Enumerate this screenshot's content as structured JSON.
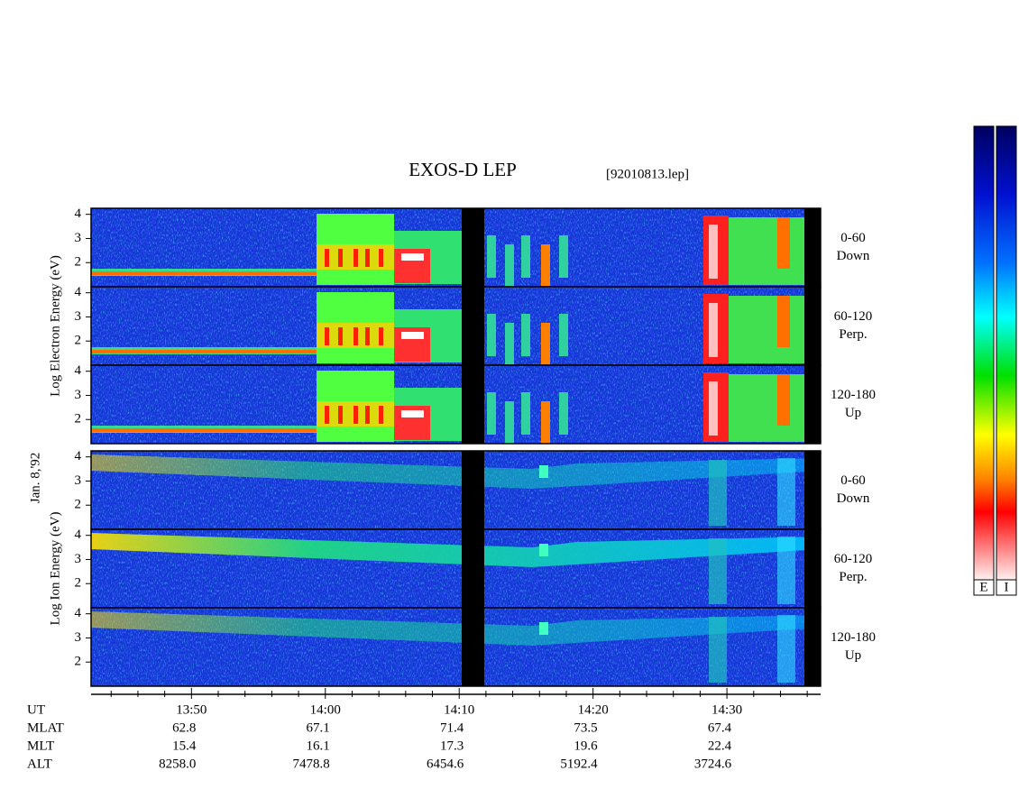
{
  "chart_data": {
    "type": "spectrogram",
    "title": "EXOS-D LEP",
    "subtitle": "[92010813.lep]",
    "date_label": "Jan. 8,'92",
    "groups": [
      {
        "ylabel": "Log  Electron  Energy (eV)"
      },
      {
        "ylabel": "Log  Ion  Energy (eV)"
      }
    ],
    "panels": [
      {
        "angle": "0-60",
        "direction": "Down"
      },
      {
        "angle": "60-120",
        "direction": "Perp."
      },
      {
        "angle": "120-180",
        "direction": "Up"
      },
      {
        "angle": "0-60",
        "direction": "Down"
      },
      {
        "angle": "60-120",
        "direction": "Perp."
      },
      {
        "angle": "120-180",
        "direction": "Up"
      }
    ],
    "ylim": [
      1,
      4.25
    ],
    "yticks": [
      2,
      3,
      4
    ],
    "xlim": [
      822.5,
      877
    ],
    "xticks": [
      {
        "value": 830,
        "label": "13:50"
      },
      {
        "value": 840,
        "label": "14:00"
      },
      {
        "value": 850,
        "label": "14:10"
      },
      {
        "value": 860,
        "label": "14:20"
      },
      {
        "value": 870,
        "label": "14:30"
      }
    ],
    "xminorticks": [
      824,
      826,
      828,
      832,
      834,
      836,
      838,
      842,
      844,
      846,
      848,
      852,
      854,
      856,
      858,
      862,
      864,
      866,
      868,
      872,
      874,
      876
    ],
    "xlabel": "UT",
    "rows": [
      {
        "label": "MLAT",
        "values": [
          "62.8",
          "67.1",
          "71.4",
          "73.5",
          "67.4"
        ]
      },
      {
        "label": "MLT",
        "values": [
          "15.4",
          "16.1",
          "17.3",
          "19.6",
          "22.4"
        ]
      },
      {
        "label": "ALT",
        "values": [
          "8258.0",
          "7478.8",
          "6454.6",
          "5192.4",
          "3724.6"
        ]
      }
    ],
    "colorbars": [
      "E",
      "I"
    ]
  }
}
